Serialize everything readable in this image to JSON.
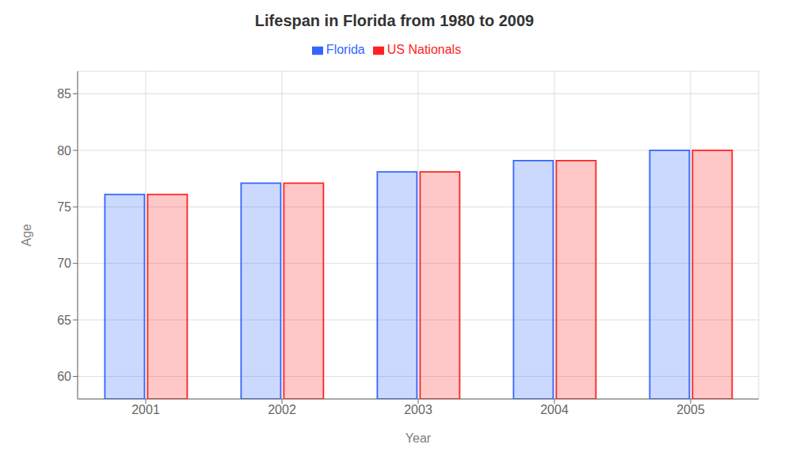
{
  "chart_data": {
    "type": "bar",
    "title": "Lifespan in Florida from 1980 to 2009",
    "x_label": "Year",
    "y_label": "Age",
    "categories": [
      "2001",
      "2002",
      "2003",
      "2004",
      "2005"
    ],
    "series": [
      {
        "name": "Florida",
        "color": "#3366ff",
        "values": [
          76.1,
          77.1,
          78.1,
          79.1,
          80.0
        ]
      },
      {
        "name": "US Nationals",
        "color": "#ff2222",
        "values": [
          76.1,
          77.1,
          78.1,
          79.1,
          80.0
        ]
      }
    ],
    "ylim": [
      58,
      87
    ],
    "yticks": [
      60,
      65,
      70,
      75,
      80,
      85
    ],
    "grid": true,
    "legend": "top"
  }
}
